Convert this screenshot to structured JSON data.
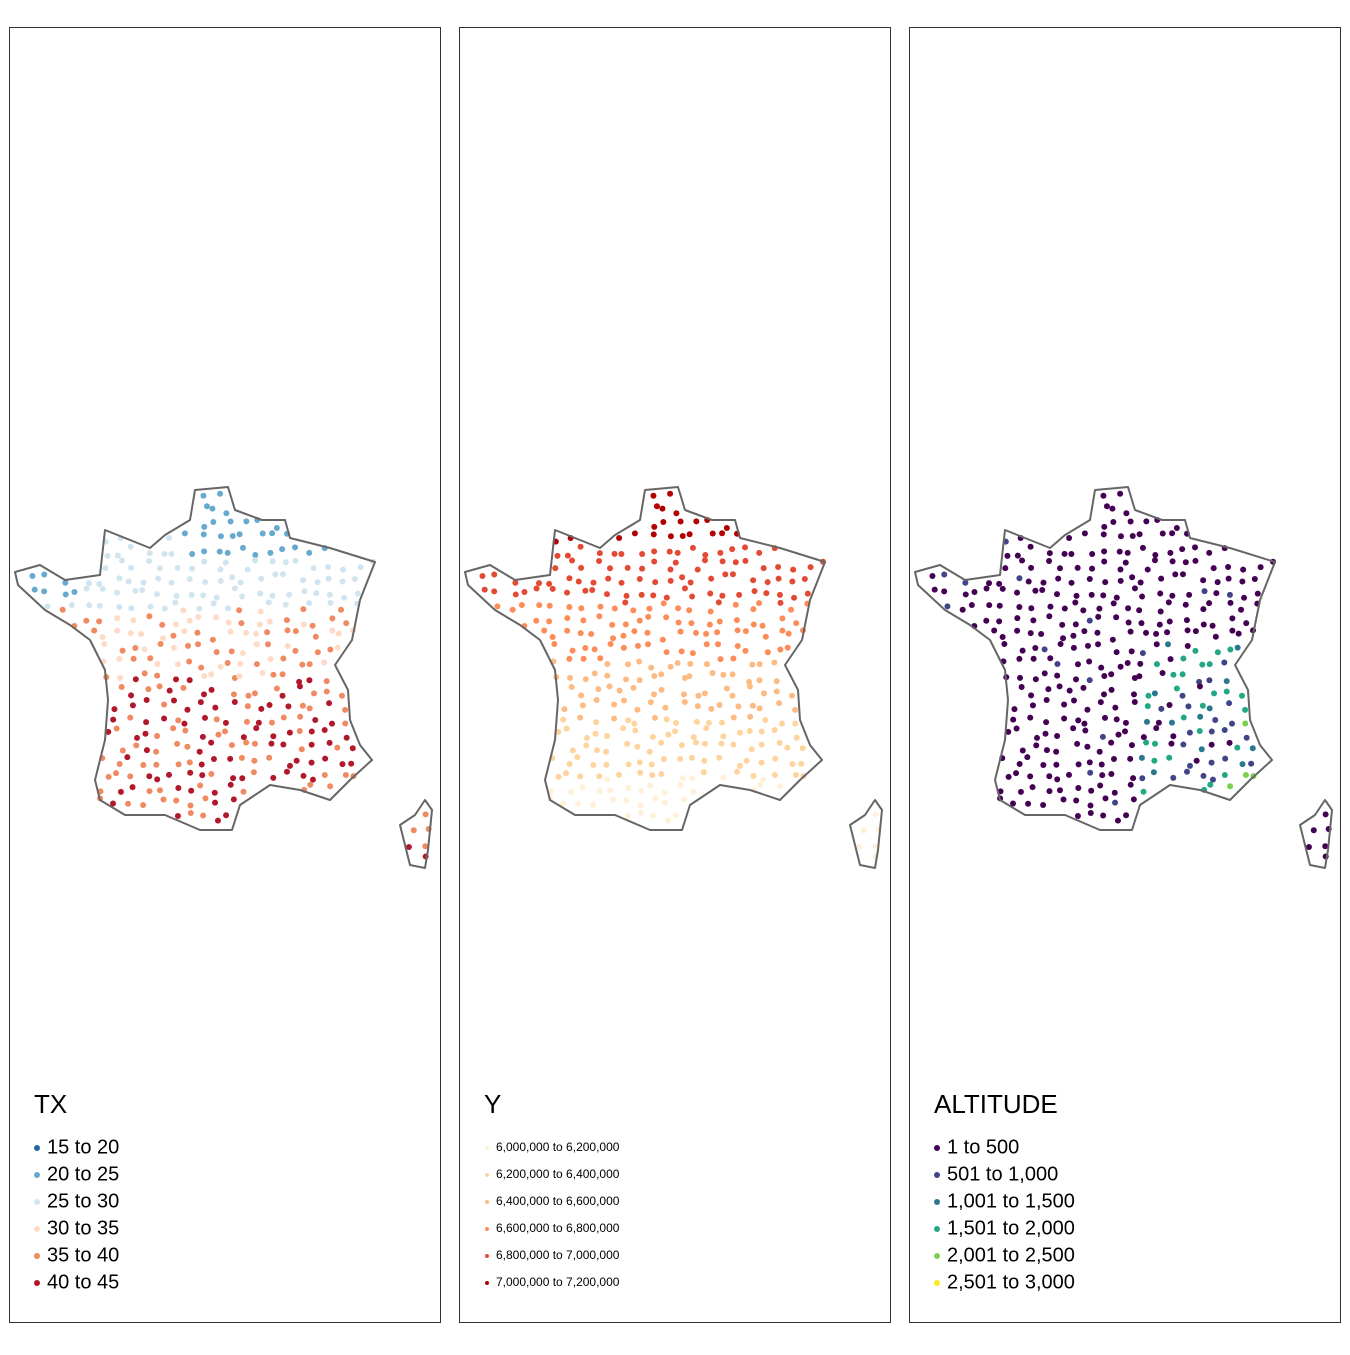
{
  "panels": [
    {
      "title": "TX",
      "legend": [
        {
          "label": "15 to 20",
          "color": "#2166ac"
        },
        {
          "label": "20 to 25",
          "color": "#67a9cf"
        },
        {
          "label": "25 to 30",
          "color": "#d1e5f0"
        },
        {
          "label": "30 to 35",
          "color": "#fddbc7"
        },
        {
          "label": "35 to 40",
          "color": "#ef8a62"
        },
        {
          "label": "40 to 45",
          "color": "#b2182b"
        }
      ]
    },
    {
      "title": "Y",
      "legend": [
        {
          "label": "6,000,000 to 6,200,000",
          "color": "#fef0d9"
        },
        {
          "label": "6,200,000 to 6,400,000",
          "color": "#fdd49e"
        },
        {
          "label": "6,400,000 to 6,600,000",
          "color": "#fdbb84"
        },
        {
          "label": "6,600,000 to 6,800,000",
          "color": "#fc8d59"
        },
        {
          "label": "6,800,000 to 7,000,000",
          "color": "#e34a33"
        },
        {
          "label": "7,000,000 to 7,200,000",
          "color": "#b30000"
        }
      ]
    },
    {
      "title": "ALTITUDE",
      "legend": [
        {
          "label": "1 to 500",
          "color": "#440154"
        },
        {
          "label": "501 to 1,000",
          "color": "#414487"
        },
        {
          "label": "1,001 to 1,500",
          "color": "#2a788e"
        },
        {
          "label": "1,501 to 2,000",
          "color": "#22a884"
        },
        {
          "label": "2,001 to 2,500",
          "color": "#7ad151"
        },
        {
          "label": "2,501 to 3,000",
          "color": "#fde725"
        }
      ]
    }
  ]
}
